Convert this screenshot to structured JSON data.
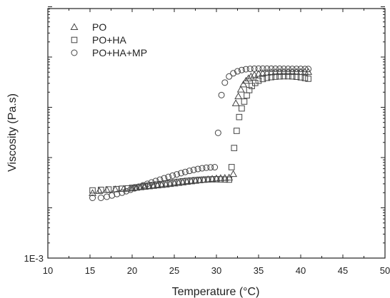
{
  "chart_data": {
    "type": "scatter",
    "xlabel": "Temperature (°C)",
    "ylabel": "Viscosity (Pa.s)",
    "x_scale": "linear",
    "y_scale": "log",
    "xlim": [
      10,
      50
    ],
    "ylim": [
      0.001,
      100
    ],
    "x_ticks": [
      10,
      15,
      20,
      25,
      30,
      35,
      40,
      45,
      50
    ],
    "x_tick_labels": [
      "10",
      "15",
      "20",
      "25",
      "30",
      "35",
      "40",
      "45",
      "50"
    ],
    "y_tick_labels": [
      {
        "value": 0.001,
        "label": "1E-3"
      }
    ],
    "grid": false,
    "legend_position": "top-left",
    "series": [
      {
        "name": "PO",
        "marker": "triangle",
        "points": [
          [
            15.3,
            0.0196
          ],
          [
            16.1,
            0.0216
          ],
          [
            17.0,
            0.0226
          ],
          [
            18.0,
            0.0232
          ],
          [
            19.0,
            0.0238
          ],
          [
            20.0,
            0.0244
          ],
          [
            20.5,
            0.025
          ],
          [
            21.0,
            0.0256
          ],
          [
            21.5,
            0.0262
          ],
          [
            22.0,
            0.0267
          ],
          [
            22.5,
            0.0273
          ],
          [
            23.0,
            0.0278
          ],
          [
            23.5,
            0.0284
          ],
          [
            24.0,
            0.029
          ],
          [
            24.5,
            0.0297
          ],
          [
            25.0,
            0.0304
          ],
          [
            25.5,
            0.0312
          ],
          [
            26.0,
            0.032
          ],
          [
            26.5,
            0.0328
          ],
          [
            27.0,
            0.0336
          ],
          [
            27.5,
            0.0344
          ],
          [
            28.0,
            0.0352
          ],
          [
            28.5,
            0.036
          ],
          [
            29.0,
            0.0368
          ],
          [
            29.5,
            0.0376
          ],
          [
            30.0,
            0.0384
          ],
          [
            30.5,
            0.039
          ],
          [
            31.0,
            0.0393
          ],
          [
            31.5,
            0.0398
          ],
          [
            32.0,
            0.047
          ],
          [
            32.3,
            1.2
          ],
          [
            32.6,
            1.65
          ],
          [
            32.9,
            2.25
          ],
          [
            33.2,
            2.85
          ],
          [
            33.5,
            3.35
          ],
          [
            33.8,
            3.75
          ],
          [
            34.1,
            4.1
          ],
          [
            34.5,
            4.4
          ],
          [
            35.0,
            4.62
          ],
          [
            35.5,
            4.78
          ],
          [
            36.0,
            4.88
          ],
          [
            36.5,
            4.95
          ],
          [
            37.0,
            5.0
          ],
          [
            37.5,
            5.03
          ],
          [
            38.0,
            5.05
          ],
          [
            38.5,
            5.05
          ],
          [
            39.0,
            5.05
          ],
          [
            39.5,
            5.05
          ],
          [
            40.0,
            5.05
          ],
          [
            40.5,
            5.05
          ],
          [
            40.9,
            5.05
          ]
        ]
      },
      {
        "name": "PO+HA",
        "marker": "square",
        "points": [
          [
            15.3,
            0.0222
          ],
          [
            16.3,
            0.0228
          ],
          [
            17.2,
            0.0232
          ],
          [
            18.1,
            0.0236
          ],
          [
            18.8,
            0.024
          ],
          [
            19.5,
            0.0244
          ],
          [
            20.0,
            0.025
          ],
          [
            20.5,
            0.0256
          ],
          [
            21.0,
            0.0263
          ],
          [
            21.5,
            0.027
          ],
          [
            22.0,
            0.0277
          ],
          [
            22.5,
            0.0284
          ],
          [
            23.0,
            0.0291
          ],
          [
            23.5,
            0.0298
          ],
          [
            24.0,
            0.0306
          ],
          [
            24.5,
            0.0314
          ],
          [
            25.0,
            0.0322
          ],
          [
            25.5,
            0.033
          ],
          [
            26.0,
            0.0337
          ],
          [
            26.5,
            0.0344
          ],
          [
            27.0,
            0.035
          ],
          [
            27.5,
            0.0356
          ],
          [
            28.0,
            0.0361
          ],
          [
            28.5,
            0.0364
          ],
          [
            29.0,
            0.0367
          ],
          [
            29.5,
            0.0369
          ],
          [
            30.0,
            0.037
          ],
          [
            30.5,
            0.0368
          ],
          [
            31.0,
            0.0366
          ],
          [
            31.5,
            0.0364
          ],
          [
            31.8,
            0.0645
          ],
          [
            32.1,
            0.155
          ],
          [
            32.4,
            0.34
          ],
          [
            32.7,
            0.64
          ],
          [
            33.0,
            0.95
          ],
          [
            33.3,
            1.3
          ],
          [
            33.6,
            1.72
          ],
          [
            33.9,
            2.2
          ],
          [
            34.2,
            2.65
          ],
          [
            34.6,
            3.05
          ],
          [
            35.0,
            3.38
          ],
          [
            35.5,
            3.65
          ],
          [
            36.0,
            3.85
          ],
          [
            36.5,
            3.98
          ],
          [
            37.0,
            4.07
          ],
          [
            37.5,
            4.12
          ],
          [
            38.0,
            4.15
          ],
          [
            38.5,
            4.15
          ],
          [
            39.0,
            4.12
          ],
          [
            39.5,
            4.05
          ],
          [
            40.0,
            3.95
          ],
          [
            40.5,
            3.82
          ],
          [
            40.9,
            3.7
          ]
        ]
      },
      {
        "name": "PO+HA+MP",
        "marker": "circle",
        "points": [
          [
            15.3,
            0.0158
          ],
          [
            16.3,
            0.0158
          ],
          [
            17.0,
            0.0166
          ],
          [
            17.6,
            0.0176
          ],
          [
            18.2,
            0.0188
          ],
          [
            18.8,
            0.02
          ],
          [
            19.3,
            0.0214
          ],
          [
            19.8,
            0.0229
          ],
          [
            20.3,
            0.0245
          ],
          [
            20.8,
            0.0262
          ],
          [
            21.3,
            0.028
          ],
          [
            21.8,
            0.03
          ],
          [
            22.3,
            0.032
          ],
          [
            22.8,
            0.0342
          ],
          [
            23.3,
            0.0364
          ],
          [
            23.8,
            0.0388
          ],
          [
            24.3,
            0.0412
          ],
          [
            24.8,
            0.0437
          ],
          [
            25.3,
            0.0463
          ],
          [
            25.8,
            0.049
          ],
          [
            26.3,
            0.0517
          ],
          [
            26.8,
            0.0544
          ],
          [
            27.3,
            0.0569
          ],
          [
            27.8,
            0.0592
          ],
          [
            28.3,
            0.0612
          ],
          [
            28.8,
            0.0628
          ],
          [
            29.3,
            0.0638
          ],
          [
            29.8,
            0.0643
          ],
          [
            30.2,
            0.31
          ],
          [
            30.6,
            1.75
          ],
          [
            31.0,
            3.1
          ],
          [
            31.5,
            4.1
          ],
          [
            32.0,
            4.75
          ],
          [
            32.5,
            5.2
          ],
          [
            33.0,
            5.52
          ],
          [
            33.5,
            5.72
          ],
          [
            34.0,
            5.82
          ],
          [
            34.5,
            5.86
          ],
          [
            35.0,
            5.88
          ],
          [
            35.5,
            5.88
          ],
          [
            36.0,
            5.87
          ],
          [
            36.5,
            5.86
          ],
          [
            37.0,
            5.85
          ],
          [
            37.5,
            5.85
          ],
          [
            38.0,
            5.84
          ],
          [
            38.5,
            5.83
          ],
          [
            39.0,
            5.82
          ],
          [
            39.5,
            5.81
          ],
          [
            40.0,
            5.8
          ],
          [
            40.5,
            5.79
          ],
          [
            40.9,
            5.78
          ]
        ]
      }
    ]
  }
}
